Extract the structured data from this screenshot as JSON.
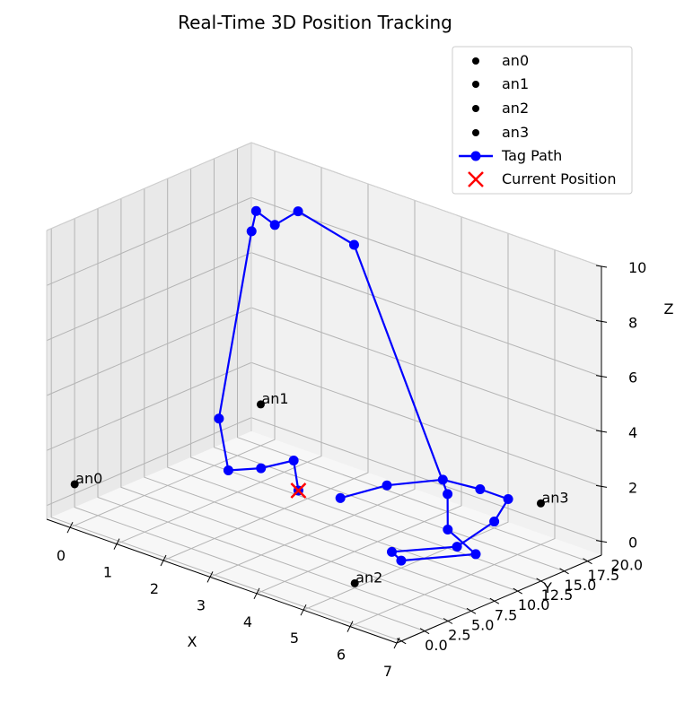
{
  "chart_data": {
    "type": "scatter3d",
    "title": "Real-Time 3D Position Tracking",
    "xlabel": "X",
    "ylabel": "Y",
    "zlabel": "Z",
    "xlim": [
      -0.5,
      7
    ],
    "ylim": [
      -0.5,
      21.5
    ],
    "zlim": [
      -0.5,
      10
    ],
    "x_ticks": [
      "0",
      "1",
      "2",
      "3",
      "4",
      "5",
      "6",
      "7"
    ],
    "y_ticks": [
      "0.0",
      "2.5",
      "5.0",
      "7.5",
      "10.0",
      "12.5",
      "15.0",
      "17.5",
      "20.0"
    ],
    "z_ticks": [
      "0",
      "2",
      "4",
      "6",
      "8",
      "10"
    ],
    "grid": true,
    "legend_position": "top-right",
    "legend": [
      "an0",
      "an1",
      "an2",
      "an3",
      "Tag Path",
      "Current Position"
    ],
    "anchors": [
      {
        "name": "an0",
        "x": 0,
        "y": 0,
        "z": 1
      },
      {
        "name": "an1",
        "x": 0,
        "y": 20,
        "z": 1
      },
      {
        "name": "an2",
        "x": 6,
        "y": 0,
        "z": 1
      },
      {
        "name": "an3",
        "x": 6,
        "y": 20,
        "z": 1
      }
    ],
    "tag_path": {
      "name": "Tag Path",
      "points": [
        {
          "x": 2.8,
          "y": 10.0,
          "z": 1.0
        },
        {
          "x": 2.3,
          "y": 12.0,
          "z": 1.5
        },
        {
          "x": 1.6,
          "y": 12.0,
          "z": 0.8
        },
        {
          "x": 1.2,
          "y": 10.5,
          "z": 0.7
        },
        {
          "x": 0.5,
          "y": 13.0,
          "z": 1.8
        },
        {
          "x": 0.8,
          "y": 15.0,
          "z": 8.5
        },
        {
          "x": 0.3,
          "y": 18.0,
          "z": 8.5
        },
        {
          "x": 0.9,
          "y": 17.0,
          "z": 8.5
        },
        {
          "x": 0.8,
          "y": 20.0,
          "z": 8.5
        },
        {
          "x": 2.0,
          "y": 20.0,
          "z": 8.0
        },
        {
          "x": 4.8,
          "y": 16.0,
          "z": 1.2
        },
        {
          "x": 6.0,
          "y": 10.0,
          "z": 1.5
        },
        {
          "x": 6.4,
          "y": 11.0,
          "z": 0.7
        },
        {
          "x": 5.7,
          "y": 6.5,
          "z": 0.7
        },
        {
          "x": 5.2,
          "y": 8.0,
          "z": 0.5
        },
        {
          "x": 5.6,
          "y": 13.0,
          "z": 0.2
        },
        {
          "x": 5.8,
          "y": 16.0,
          "z": 0.8
        },
        {
          "x": 5.5,
          "y": 19.0,
          "z": 1.0
        },
        {
          "x": 4.9,
          "y": 19.0,
          "z": 1.0
        },
        {
          "x": 4.2,
          "y": 18.5,
          "z": 1.0
        },
        {
          "x": 3.7,
          "y": 15.0,
          "z": 1.0
        },
        {
          "x": 3.5,
          "y": 11.0,
          "z": 1.0
        }
      ]
    },
    "current_position": {
      "name": "Current Position",
      "x": 2.8,
      "y": 10.0,
      "z": 1.0
    },
    "colors": {
      "anchor": "#000000",
      "path": "#0000ff",
      "current": "#ff0000",
      "pane_left": "#e9e9e9",
      "pane_back": "#f1f1f1",
      "pane_floor": "#f7f7f7",
      "grid": "#b4b4b4"
    }
  }
}
